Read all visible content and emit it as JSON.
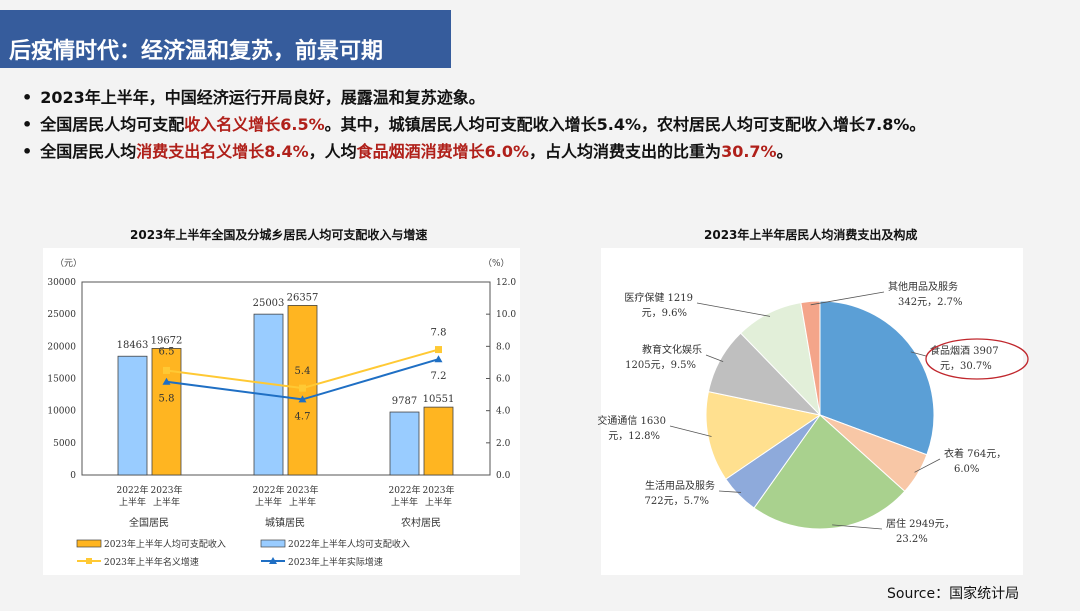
{
  "header": {
    "title": "后疫情时代：经济温和复苏，前景可期"
  },
  "bullets": [
    {
      "parts": [
        {
          "t": "2023年上半年，中国经济运行开局良好，展露温和复苏迹象。",
          "red": false
        }
      ]
    },
    {
      "parts": [
        {
          "t": "全国居民人均可支配",
          "red": false
        },
        {
          "t": "收入名义增长6.5%",
          "red": true
        },
        {
          "t": "。其中，城镇居民人均可支配收入增长5.4%，农村居民人均可支配收入增长7.8%。",
          "red": false
        }
      ]
    },
    {
      "parts": [
        {
          "t": "全国居民人均",
          "red": false
        },
        {
          "t": "消费支出名义增长8.4%",
          "red": true
        },
        {
          "t": "，人均",
          "red": false
        },
        {
          "t": "食品烟酒消费增长6.0%",
          "red": true
        },
        {
          "t": "，占人均消费支出的比重为",
          "red": false
        },
        {
          "t": "30.7%",
          "red": true
        },
        {
          "t": "。",
          "red": false
        }
      ]
    }
  ],
  "source": "Source：国家统计局",
  "colors": {
    "header": "#365c9c",
    "accent_red": "#b0201a",
    "bar2022": "#99ccff",
    "bar2023": "#ffb521",
    "line_nominal": "#ffc934",
    "line_real": "#1f6fc4"
  },
  "chart_data": [
    {
      "type": "bar",
      "title": "2023年上半年全国及分城乡居民人均可支配收入与增速",
      "y_unit": "（元）",
      "y2_unit": "（%）",
      "ylim": [
        0,
        30000
      ],
      "y2lim": [
        0,
        12
      ],
      "yticks": [
        "0",
        "5000",
        "10000",
        "15000",
        "20000",
        "25000",
        "30000"
      ],
      "y2ticks": [
        "0.0",
        "2.0",
        "4.0",
        "6.0",
        "8.0",
        "10.0",
        "12.0"
      ],
      "categories": [
        "全国居民",
        "城镇居民",
        "农村居民"
      ],
      "sub_labels": [
        "2022年",
        "2023年",
        "上半年",
        "上半年"
      ],
      "series": [
        {
          "name": "2022年上半年人均可支配收入",
          "kind": "bar",
          "values": [
            18463,
            25003,
            9787
          ]
        },
        {
          "name": "2023年上半年人均可支配收入",
          "kind": "bar",
          "values": [
            19672,
            26357,
            10551
          ]
        },
        {
          "name": "2023年上半年名义增速",
          "kind": "line",
          "axis": "right",
          "values": [
            6.5,
            5.4,
            7.8
          ]
        },
        {
          "name": "2023年上半年实际增速",
          "kind": "line",
          "axis": "right",
          "values": [
            5.8,
            4.7,
            7.2
          ]
        }
      ]
    },
    {
      "type": "pie",
      "title": "2023年上半年居民人均消费支出及构成",
      "slices": [
        {
          "name": "食品烟酒",
          "value": 3907,
          "pct": 30.7,
          "l1": "食品烟酒 3907",
          "l2": "元，30.7%",
          "color": "#5b9fd6",
          "highlight": true
        },
        {
          "name": "衣着",
          "value": 764,
          "pct": 6.0,
          "l1": "衣着 764元，",
          "l2": "6.0%",
          "color": "#f8c7a6"
        },
        {
          "name": "居住",
          "value": 2949,
          "pct": 23.2,
          "l1": "居住 2949元，",
          "l2": "23.2%",
          "color": "#a9d18e"
        },
        {
          "name": "生活用品及服务",
          "value": 722,
          "pct": 5.7,
          "l1": "生活用品及服务",
          "l2": "722元，5.7%",
          "color": "#8eaadb"
        },
        {
          "name": "交通通信",
          "value": 1630,
          "pct": 12.8,
          "l1": "交通通信 1630",
          "l2": "元，12.8%",
          "color": "#ffe08f"
        },
        {
          "name": "教育文化娱乐",
          "value": 1205,
          "pct": 9.5,
          "l1": "教育文化娱乐",
          "l2": "1205元，9.5%",
          "color": "#bfbfbf"
        },
        {
          "name": "医疗保健",
          "value": 1219,
          "pct": 9.6,
          "l1": "医疗保健 1219",
          "l2": "元，9.6%",
          "color": "#e2efd9"
        },
        {
          "name": "其他用品及服务",
          "value": 342,
          "pct": 2.7,
          "l1": "其他用品及服务",
          "l2": "342元，2.7%",
          "color": "#f4a58a"
        }
      ]
    }
  ]
}
